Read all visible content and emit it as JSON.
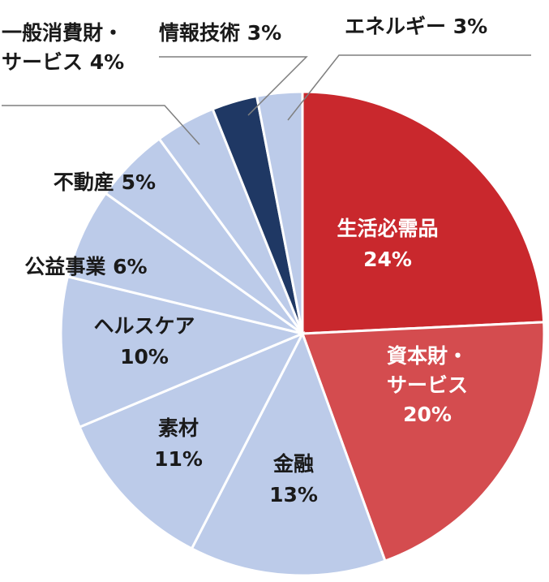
{
  "chart_data": {
    "type": "pie",
    "start": "12 o'clock",
    "direction": "clockwise",
    "unit": "%",
    "slices": [
      {
        "lines": [
          "生活必需品",
          "24%"
        ],
        "value": 24,
        "color": "#c9282d",
        "text": "light",
        "label_pos": "inside"
      },
      {
        "lines": [
          "資本財・",
          "サービス",
          "20%"
        ],
        "value": 20,
        "color": "#d44c4f",
        "text": "light",
        "label_pos": "inside"
      },
      {
        "lines": [
          "金融",
          "13%"
        ],
        "value": 13,
        "color": "#bccbe9",
        "text": "dark",
        "label_pos": "inside"
      },
      {
        "lines": [
          "素材",
          "11%"
        ],
        "value": 11,
        "color": "#bccbe9",
        "text": "dark",
        "label_pos": "inside"
      },
      {
        "lines": [
          "ヘルスケア",
          "10%"
        ],
        "value": 10,
        "color": "#bccbe9",
        "text": "dark",
        "label_pos": "inside"
      },
      {
        "lines": [
          "公益事業 6%"
        ],
        "value": 6,
        "color": "#bccbe9",
        "text": "dark",
        "label_pos": "outside"
      },
      {
        "lines": [
          "不動産 5%"
        ],
        "value": 5,
        "color": "#bccbe9",
        "text": "dark",
        "label_pos": "outside"
      },
      {
        "lines": [
          "一般消費財・",
          "サービス 4%"
        ],
        "value": 4,
        "color": "#bccbe9",
        "text": "dark",
        "label_pos": "outside-leader"
      },
      {
        "lines": [
          "情報技術 3%"
        ],
        "value": 3,
        "color": "#1f3864",
        "text": "dark",
        "label_pos": "outside-leader"
      },
      {
        "lines": [
          "エネルギー 3%"
        ],
        "value": 3,
        "color": "#bccbe9",
        "text": "dark",
        "label_pos": "outside-leader"
      }
    ]
  }
}
